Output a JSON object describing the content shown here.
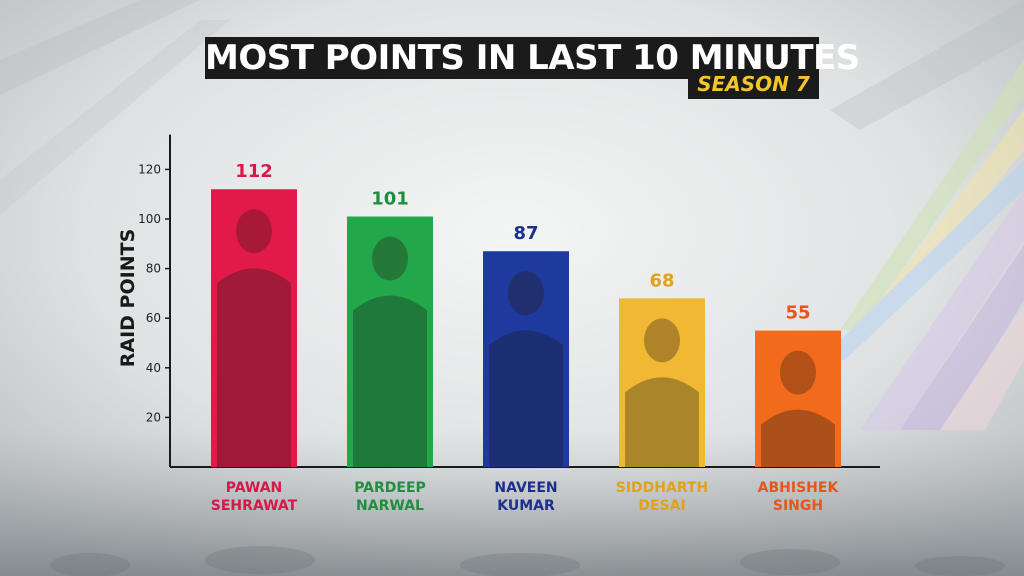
{
  "chart_data": {
    "type": "bar",
    "title": "MOST POINTS IN LAST 10 MINUTES",
    "subtitle": "SEASON 7",
    "xlabel": "",
    "ylabel": "RAID POINTS",
    "ylim": [
      0,
      130
    ],
    "yticks": [
      20,
      40,
      60,
      80,
      100,
      120
    ],
    "grid": false,
    "categories": [
      {
        "line1": "PAWAN",
        "line2": "SEHRAWAT"
      },
      {
        "line1": "PARDEEP",
        "line2": "NARWAL"
      },
      {
        "line1": "NAVEEN",
        "line2": "KUMAR"
      },
      {
        "line1": "SIDDHARTH",
        "line2": "DESAI"
      },
      {
        "line1": "ABHISHEK",
        "line2": "SINGH"
      }
    ],
    "values": [
      112,
      101,
      87,
      68,
      55
    ],
    "colors": [
      "#e21a49",
      "#22a74b",
      "#1e3a9e",
      "#f0b833",
      "#f26a1b"
    ],
    "label_colors": [
      "#d8174a",
      "#1f8f3f",
      "#1c2f8c",
      "#e0a21b",
      "#e8551a"
    ]
  }
}
